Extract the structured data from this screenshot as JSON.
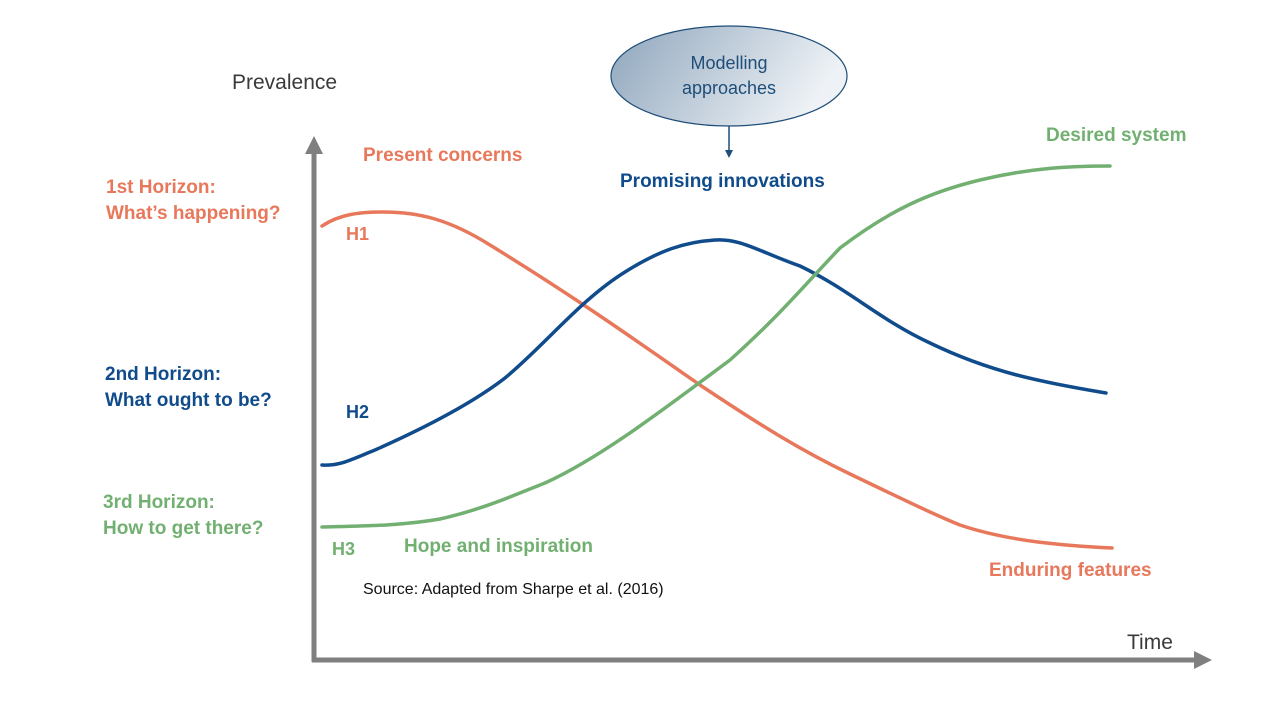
{
  "axes": {
    "y_label": "Prevalence",
    "x_label": "Time"
  },
  "horizons": [
    {
      "id": "h1",
      "title": "1st Horizon:",
      "subtitle": "What’s happening?",
      "curve_label": "H1",
      "color": "#e8785b"
    },
    {
      "id": "h2",
      "title": "2nd Horizon:",
      "subtitle": "What ought to be?",
      "curve_label": "H2",
      "color": "#104c8c"
    },
    {
      "id": "h3",
      "title": "3rd Horizon:",
      "subtitle": "How to get there?",
      "curve_label": "H3",
      "color": "#72b072"
    }
  ],
  "annotations": {
    "present_concerns": "Present concerns",
    "promising_innovations": "Promising innovations",
    "desired_system": "Desired system",
    "hope_and_inspiration": "Hope and inspiration",
    "enduring_features": "Enduring features"
  },
  "bubble": {
    "line1": "Modelling",
    "line2": "approaches"
  },
  "source": "Source: Adapted from Sharpe et al. (2016)",
  "colors": {
    "axis": "#7f7f7f",
    "h1": "#e8785b",
    "h2": "#104c8c",
    "h3": "#72b072",
    "bubble_dark": "#8fa6bd",
    "bubble_light": "#eef2f6"
  }
}
